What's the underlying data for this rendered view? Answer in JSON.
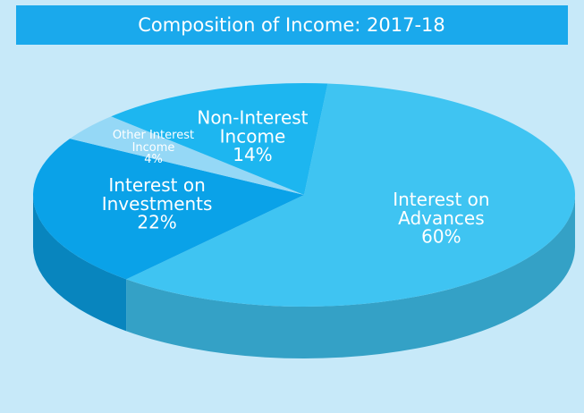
{
  "chart_data": {
    "type": "pie",
    "title": "Composition of Income: 2017-18",
    "categories": [
      "Interest on Advances",
      "Interest on Investments",
      "Other Interest Income",
      "Non-Interest Income"
    ],
    "values": [
      60,
      22,
      4,
      14
    ],
    "value_labels": [
      "60%",
      "22%",
      "4%",
      "14%"
    ],
    "colors": [
      "#3fc4f2",
      "#0aa2e8",
      "#95d8f6",
      "#1db6f0"
    ]
  }
}
